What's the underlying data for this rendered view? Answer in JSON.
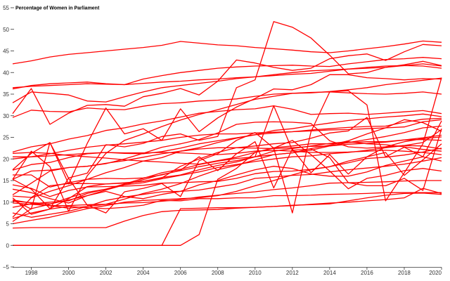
{
  "chart_data": {
    "type": "line",
    "title": "",
    "xlabel": "",
    "ylabel": "Percentage of Women in Parliament",
    "x": [
      1997,
      1998,
      1999,
      2000,
      2001,
      2002,
      2003,
      2004,
      2005,
      2006,
      2007,
      2008,
      2009,
      2010,
      2011,
      2012,
      2013,
      2014,
      2015,
      2016,
      2017,
      2018,
      2019,
      2020
    ],
    "xlim": [
      1997,
      2020
    ],
    "ylim": [
      -5,
      55
    ],
    "xticks": [
      1998,
      2000,
      2002,
      2004,
      2006,
      2008,
      2010,
      2012,
      2014,
      2016,
      2018,
      2020
    ],
    "yticks": [
      -5,
      0,
      5,
      10,
      15,
      20,
      25,
      30,
      35,
      40,
      45,
      50,
      55
    ],
    "grid": false,
    "legend": "none",
    "line_color": "#ff0000",
    "series": [
      {
        "values": [
          42,
          42.7,
          43.6,
          44.2,
          44.6,
          45,
          45.4,
          45.8,
          46.3,
          47.2,
          46.8,
          46.4,
          46.2,
          45.8,
          45.5,
          45.2,
          44.8,
          44.6,
          45,
          45.5,
          46,
          46.6,
          47.3,
          47
        ]
      },
      {
        "values": [
          36.5,
          36.8,
          37,
          37.2,
          37.4,
          37.3,
          37.2,
          38.5,
          39.3,
          40,
          40.5,
          41,
          41.3,
          41.5,
          41.6,
          41.7,
          41.5,
          41.4,
          42,
          42.5,
          43,
          43.2,
          43.5,
          43.2
        ]
      },
      {
        "values": [
          36.2,
          37,
          37.4,
          37.6,
          37.8,
          37.4,
          37.2,
          37.5,
          37.8,
          38,
          38.3,
          38.5,
          38.8,
          39,
          39.5,
          40,
          40.4,
          40.6,
          40.8,
          41,
          41.2,
          41.6,
          42,
          41.5
        ]
      },
      {
        "values": [
          33,
          35.5,
          35.2,
          34.8,
          33.4,
          33.2,
          34.4,
          35.5,
          36.5,
          37,
          37.5,
          38,
          38.6,
          39,
          39.3,
          39.6,
          39.8,
          40.3,
          40.8,
          41.2,
          41.5,
          41.6,
          41.5,
          41
        ]
      },
      {
        "values": [
          29.6,
          31.3,
          31,
          30.9,
          31.8,
          31.5,
          31.4,
          32.2,
          32.8,
          33,
          33.4,
          33.6,
          33.9,
          34.5,
          35,
          35.2,
          35.4,
          35.5,
          35.3,
          35.1,
          35,
          35.2,
          35.5,
          35
        ]
      },
      {
        "values": [
          30.5,
          36.3,
          28,
          30.6,
          32.4,
          32.6,
          32.2,
          34.4,
          35.2,
          36.3,
          34.8,
          38,
          42.9,
          42.2,
          41.2,
          40.5,
          41,
          43.2,
          43.9,
          44.3,
          42.8,
          44.8,
          46.5,
          46.2
        ]
      },
      {
        "values": [
          17.5,
          21.3,
          23.8,
          14.2,
          23.6,
          31.8,
          25.8,
          27,
          24.3,
          31.6,
          26.3,
          29.5,
          32,
          34,
          36.2,
          36,
          37.2,
          39.5,
          39.5,
          38.8,
          38.6,
          38.3,
          38.6,
          38.5
        ]
      },
      {
        "values": [
          15.3,
          21.8,
          18.2,
          7.9,
          16.1,
          21.3,
          24.3,
          25.8,
          27.5,
          29,
          30.3,
          31.4,
          32.6,
          33.8,
          34.5,
          35.2,
          35.3,
          35.6,
          36,
          36.5,
          37.2,
          37.7,
          38.2,
          38.7
        ]
      },
      {
        "values": [
          21.6,
          22.8,
          23.5,
          24.6,
          25.4,
          26.6,
          27.2,
          28.1,
          28.8,
          29.7,
          30.6,
          31,
          31.4,
          31.6,
          32.3,
          31.5,
          30.3,
          30.5,
          30.6,
          30.3,
          30.6,
          30.9,
          31.2,
          30.5
        ]
      },
      {
        "values": [
          20,
          20.5,
          21.2,
          22,
          22.7,
          23.2,
          23.5,
          23.9,
          24.3,
          25,
          25.5,
          25.8,
          25.8,
          26,
          26.2,
          26.3,
          26.5,
          26.7,
          26.8,
          27,
          27.2,
          27.4,
          28.6,
          29.1
        ]
      },
      {
        "values": [
          6.5,
          11,
          12.5,
          13.8,
          15.3,
          16.8,
          18,
          19.5,
          20.3,
          21.8,
          22.6,
          23.8,
          24.8,
          25.6,
          26.6,
          27,
          27.7,
          28.3,
          28.9,
          29.3,
          29.7,
          30,
          30.4,
          29.8
        ]
      },
      {
        "values": [
          17.4,
          18.7,
          19.2,
          20.3,
          21.2,
          21.5,
          21.3,
          21.2,
          21.7,
          22.5,
          23.5,
          24.2,
          24.9,
          25.6,
          26,
          26.3,
          26.7,
          27,
          27.3,
          27.5,
          27.6,
          28.5,
          29.2,
          29.4
        ]
      },
      {
        "values": [
          15.3,
          17.2,
          17.4,
          18,
          18.3,
          19,
          19.6,
          20.4,
          21.2,
          21.8,
          22.3,
          22.6,
          22.6,
          22.5,
          22.4,
          22.6,
          22.9,
          23,
          23.4,
          23.6,
          23.9,
          24.4,
          24.9,
          25.5
        ]
      },
      {
        "values": [
          8.8,
          9.6,
          10,
          10.3,
          12,
          13,
          14.2,
          15.5,
          16.8,
          17.6,
          18.7,
          19.5,
          20.1,
          20.5,
          21,
          21.4,
          22,
          23,
          23.8,
          24.5,
          25.2,
          26.1,
          27.2,
          27.6
        ]
      },
      {
        "values": [
          21.3,
          21.5,
          21.3,
          20.8,
          20.5,
          20.2,
          19.8,
          19.5,
          19.3,
          19,
          18.8,
          19.6,
          20.4,
          21.5,
          22.6,
          23,
          23.5,
          23.5,
          23.8,
          24,
          24,
          24.4,
          24.5,
          24.3
        ]
      },
      {
        "values": [
          20.5,
          20.5,
          20.7,
          21,
          21.3,
          21.5,
          21.4,
          21.4,
          21.5,
          21.4,
          21.2,
          21,
          21.3,
          21.8,
          22,
          21.8,
          21.5,
          21.5,
          21.6,
          21.8,
          22,
          21.8,
          21.5,
          21
        ]
      },
      {
        "values": [
          15.3,
          13,
          8.5,
          10.8,
          13.6,
          14.2,
          14.5,
          14.8,
          15.7,
          16.3,
          17.5,
          18.5,
          19.3,
          20.5,
          21.8,
          22.4,
          23,
          23.6,
          24,
          23.5,
          23.3,
          22.8,
          22.2,
          21.8
        ]
      },
      {
        "values": [
          14,
          13.2,
          11.3,
          12.7,
          13.5,
          13.6,
          13.7,
          13.9,
          14.4,
          14.5,
          14.7,
          14.8,
          15.5,
          16.6,
          17.1,
          17.2,
          17.6,
          18.2,
          19.1,
          20.1,
          20.4,
          20.9,
          21.6,
          22.5
        ]
      },
      {
        "values": [
          11.7,
          14.4,
          17.2,
          18,
          18.3,
          18.9,
          20,
          21.3,
          22.7,
          23.5,
          24.5,
          26,
          28,
          28.5,
          28.6,
          28.5,
          28.2,
          24.2,
          22.8,
          22.5,
          22.8,
          23.1,
          23,
          22.3
        ]
      },
      {
        "values": [
          5.5,
          8.5,
          9.5,
          11,
          12.3,
          13,
          14,
          14.5,
          15.4,
          16.2,
          17,
          18,
          18.7,
          19.4,
          20,
          20.5,
          20.7,
          21.2,
          21.5,
          22,
          22.6,
          23.1,
          23.8,
          26.8
        ]
      },
      {
        "values": [
          11.4,
          11.1,
          13.8,
          14.3,
          14.3,
          14.2,
          14.4,
          14.8,
          15.6,
          18.3,
          20,
          21.5,
          22.6,
          23,
          23.5,
          23.8,
          24.8,
          26,
          26.5,
          29.6,
          20.5,
          22.7,
          20.5,
          28.8
        ]
      },
      {
        "values": [
          10.5,
          9.8,
          9.2,
          8.6,
          9,
          9.5,
          10.7,
          12,
          13,
          14.3,
          16,
          17.5,
          18.5,
          19.8,
          21,
          21.4,
          22.4,
          23.2,
          24.2,
          25.8,
          27.2,
          29.1,
          28.4,
          26.4
        ]
      },
      {
        "values": [
          7.5,
          6.5,
          7.2,
          7.9,
          9,
          10.4,
          11.2,
          11.8,
          12.4,
          12.5,
          12.8,
          13.5,
          14.2,
          15.5,
          15.8,
          16.2,
          16.4,
          17,
          17.5,
          17.9,
          18.3,
          18.8,
          19.5,
          20.3
        ]
      },
      {
        "values": [
          5,
          5.8,
          6.5,
          7.5,
          8.5,
          9.2,
          10,
          10.4,
          10.6,
          10.8,
          11,
          11.5,
          12.5,
          13.8,
          15,
          16.3,
          17.5,
          18.2,
          19.5,
          20.5,
          22.8,
          24,
          24.7,
          25.1
        ]
      },
      {
        "values": [
          13,
          12.2,
          10.8,
          9.8,
          11.5,
          12.5,
          11.3,
          10.8,
          11.8,
          12.5,
          14,
          15,
          16.3,
          17.5,
          18.3,
          17.8,
          16.5,
          16,
          16,
          17,
          18.5,
          19.5,
          20.5,
          19.5
        ]
      },
      {
        "values": [
          9.8,
          9.5,
          9.2,
          9.2,
          9.4,
          9.5,
          9.8,
          9.9,
          10.2,
          10.6,
          11.2,
          11.6,
          12,
          12.4,
          12.9,
          13.3,
          13.8,
          14.4,
          14.5,
          14.6,
          14.7,
          14.9,
          15,
          15
        ]
      },
      {
        "values": [
          6.2,
          7.5,
          8.4,
          9,
          8.7,
          8.5,
          8.8,
          9.3,
          10.4,
          10.3,
          10.8,
          10.8,
          11,
          11,
          11.5,
          11.5,
          11.6,
          11.8,
          11.9,
          12,
          12.2,
          12.2,
          12.2,
          12.2
        ]
      },
      {
        "values": [
          4,
          4.1,
          4.1,
          4.1,
          4.1,
          4.1,
          5.6,
          6.9,
          7.8,
          8.1,
          8.2,
          8.3,
          8.6,
          8.8,
          9,
          9.3,
          9.4,
          9.6,
          10.3,
          11,
          11.6,
          12,
          12.1,
          11.8
        ]
      },
      {
        "values": [
          0,
          0,
          0,
          0,
          0,
          0,
          0,
          0,
          0,
          0,
          2.5,
          15.3,
          17.8,
          21.5,
          22.5,
          24.3,
          21,
          17.2,
          13.1,
          15.5,
          16.2,
          17.3,
          17.8,
          17.2
        ]
      },
      {
        "values": [
          0,
          0,
          0,
          0,
          0,
          0,
          0,
          0,
          0,
          8.5,
          8.6,
          8.7,
          8.7,
          8.8,
          9,
          9.2,
          9.5,
          9.8,
          10,
          10.3,
          10.6,
          11,
          13.2,
          12
        ]
      },
      {
        "values": [
          16.3,
          16.3,
          13.5,
          14.5,
          15.3,
          15.5,
          15.4,
          15.6,
          16.3,
          17.4,
          20.5,
          17.3,
          21.2,
          24,
          13.3,
          22.3,
          16.8,
          21,
          16.5,
          20.5,
          21.5,
          16.2,
          19.8,
          23.5
        ]
      },
      {
        "values": [
          10.5,
          8.4,
          23.8,
          15.5,
          9.3,
          7.5,
          12.4,
          13.2,
          14.3,
          11.3,
          19.6,
          21.2,
          24.3,
          26.1,
          22.5,
          7.5,
          26.3,
          35.5,
          35.8,
          32.5,
          10.3,
          16.8,
          23.5,
          38.8
        ]
      },
      {
        "values": [
          10.2,
          9.9,
          9.6,
          10.5,
          11.5,
          12.8,
          14,
          15.2,
          16.4,
          17.3,
          18.2,
          19,
          19.6,
          20.5,
          32.3,
          22,
          22.3,
          20.3,
          14.5,
          13.8,
          13.8,
          15.5,
          12.7,
          27
        ]
      },
      {
        "values": [
          11,
          7.2,
          8.4,
          15.6,
          16.7,
          23.3,
          22.8,
          23.6,
          25.2,
          25.8,
          24.3,
          25.2,
          36.5,
          38.3,
          51.8,
          50.5,
          48,
          44,
          39.7,
          40,
          41.2,
          41.8,
          42.6,
          41.6
        ]
      }
    ]
  }
}
